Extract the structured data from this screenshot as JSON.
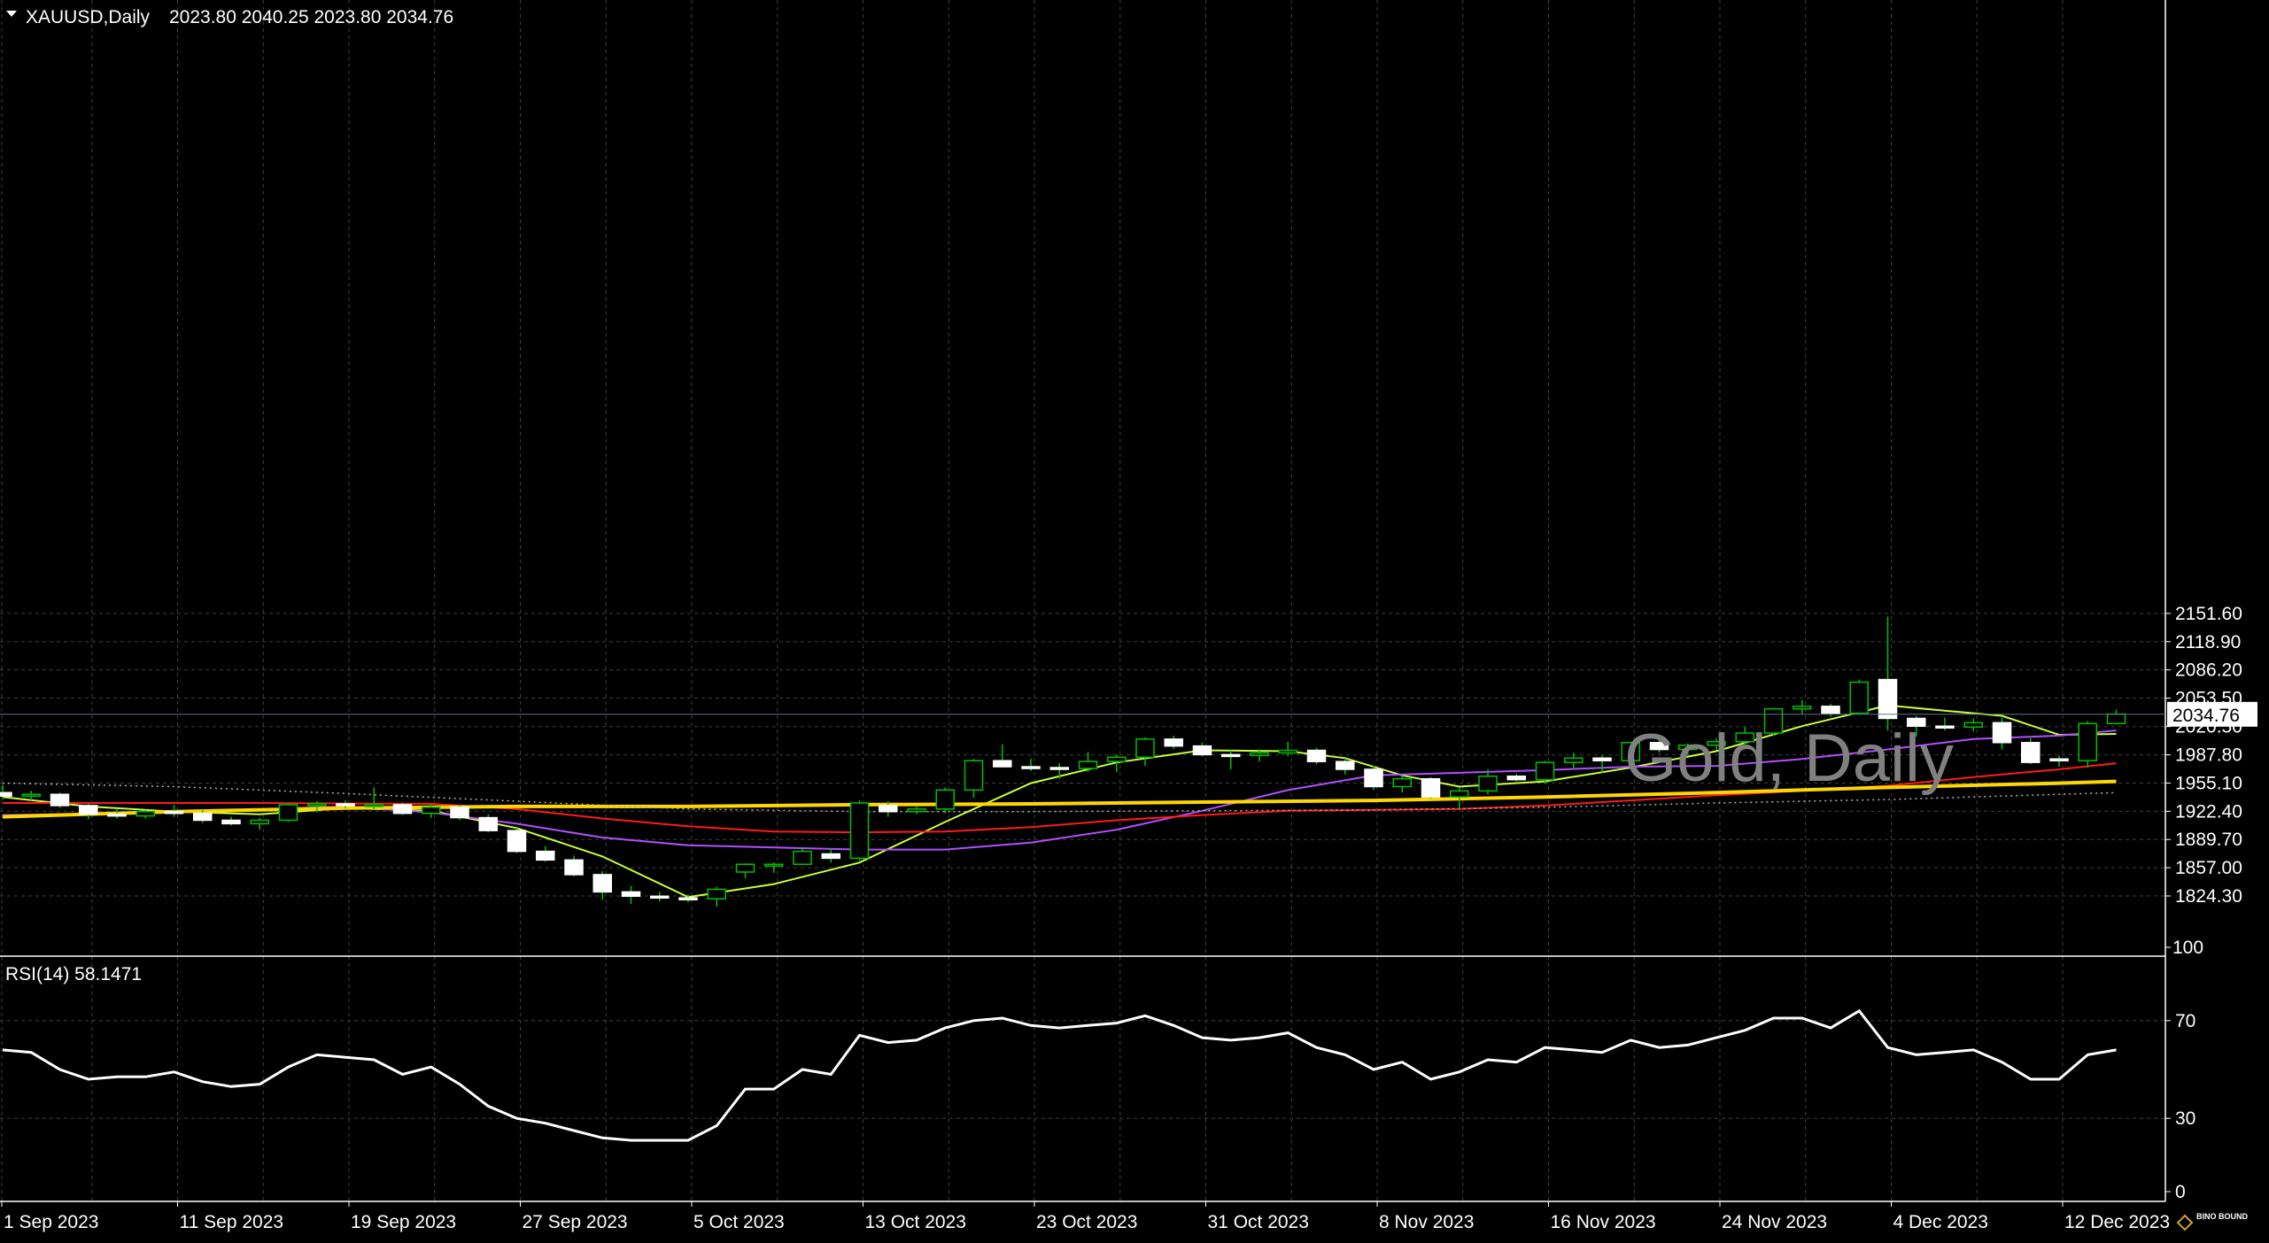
{
  "header": {
    "symbol": "XAUUSD,Daily",
    "ohlc": "2023.80 2040.25 2023.80 2034.76"
  },
  "watermark": "Gold, Daily",
  "branding": "BINO BOUND",
  "colors": {
    "background": "#000000",
    "grid": "#404040",
    "candle_up_outline": "#00c000",
    "candle_down_fill": "#ffffff",
    "ma_fast": "#c8ff3c",
    "ma_mid": "#b050ff",
    "ma_slow": "#ff1a1a",
    "ma_long": "#ffd700",
    "ma_dotted": "#b0b0b0",
    "rsi_line": "#ffffff",
    "price_line": "#607090"
  },
  "chart_data": [
    {
      "type": "candlestick",
      "title": "XAUUSD,Daily",
      "ylim": [
        1805,
        2165
      ],
      "y_ticks": [
        "2151.60",
        "2118.90",
        "2086.20",
        "2053.50",
        "2020.50",
        "1987.80",
        "1955.10",
        "1922.40",
        "1889.70",
        "1857.00",
        "1824.30"
      ],
      "current_price_label": "2034.76",
      "current_price": 2034.76,
      "x_labels": [
        "1 Sep 2023",
        "11 Sep 2023",
        "19 Sep 2023",
        "27 Sep 2023",
        "5 Oct 2023",
        "13 Oct 2023",
        "23 Oct 2023",
        "31 Oct 2023",
        "8 Nov 2023",
        "16 Nov 2023",
        "24 Nov 2023",
        "4 Dec 2023",
        "12 Dec 2023"
      ],
      "x_label_index": [
        0,
        6,
        12,
        18,
        24,
        30,
        36,
        42,
        48,
        54,
        60,
        66,
        72
      ],
      "candles": [
        {
          "o": 1944,
          "h": 1953,
          "l": 1936,
          "c": 1940
        },
        {
          "o": 1940,
          "h": 1946,
          "l": 1935,
          "c": 1942
        },
        {
          "o": 1942,
          "h": 1944,
          "l": 1926,
          "c": 1929
        },
        {
          "o": 1929,
          "h": 1931,
          "l": 1913,
          "c": 1919
        },
        {
          "o": 1919,
          "h": 1925,
          "l": 1914,
          "c": 1917
        },
        {
          "o": 1917,
          "h": 1924,
          "l": 1914,
          "c": 1922
        },
        {
          "o": 1922,
          "h": 1930,
          "l": 1916,
          "c": 1920
        },
        {
          "o": 1920,
          "h": 1924,
          "l": 1909,
          "c": 1912
        },
        {
          "o": 1912,
          "h": 1916,
          "l": 1906,
          "c": 1908
        },
        {
          "o": 1908,
          "h": 1915,
          "l": 1901,
          "c": 1912
        },
        {
          "o": 1912,
          "h": 1932,
          "l": 1910,
          "c": 1930
        },
        {
          "o": 1930,
          "h": 1934,
          "l": 1921,
          "c": 1931
        },
        {
          "o": 1931,
          "h": 1935,
          "l": 1926,
          "c": 1929
        },
        {
          "o": 1929,
          "h": 1950,
          "l": 1925,
          "c": 1930
        },
        {
          "o": 1930,
          "h": 1933,
          "l": 1918,
          "c": 1920
        },
        {
          "o": 1920,
          "h": 1930,
          "l": 1915,
          "c": 1927
        },
        {
          "o": 1927,
          "h": 1930,
          "l": 1912,
          "c": 1915
        },
        {
          "o": 1915,
          "h": 1919,
          "l": 1898,
          "c": 1900
        },
        {
          "o": 1900,
          "h": 1903,
          "l": 1874,
          "c": 1876
        },
        {
          "o": 1876,
          "h": 1882,
          "l": 1864,
          "c": 1866
        },
        {
          "o": 1866,
          "h": 1871,
          "l": 1847,
          "c": 1849
        },
        {
          "o": 1849,
          "h": 1853,
          "l": 1820,
          "c": 1829
        },
        {
          "o": 1829,
          "h": 1836,
          "l": 1815,
          "c": 1824
        },
        {
          "o": 1824,
          "h": 1829,
          "l": 1818,
          "c": 1822
        },
        {
          "o": 1822,
          "h": 1826,
          "l": 1817,
          "c": 1821
        },
        {
          "o": 1821,
          "h": 1835,
          "l": 1812,
          "c": 1832
        },
        {
          "o": 1852,
          "h": 1862,
          "l": 1845,
          "c": 1861
        },
        {
          "o": 1861,
          "h": 1863,
          "l": 1851,
          "c": 1861
        },
        {
          "o": 1861,
          "h": 1879,
          "l": 1860,
          "c": 1876
        },
        {
          "o": 1873,
          "h": 1879,
          "l": 1863,
          "c": 1868
        },
        {
          "o": 1868,
          "h": 1935,
          "l": 1865,
          "c": 1932
        },
        {
          "o": 1929,
          "h": 1934,
          "l": 1916,
          "c": 1922
        },
        {
          "o": 1922,
          "h": 1929,
          "l": 1919,
          "c": 1925
        },
        {
          "o": 1925,
          "h": 1950,
          "l": 1920,
          "c": 1947
        },
        {
          "o": 1947,
          "h": 1983,
          "l": 1938,
          "c": 1981
        },
        {
          "o": 1981,
          "h": 2000,
          "l": 1974,
          "c": 1974
        },
        {
          "o": 1974,
          "h": 1983,
          "l": 1969,
          "c": 1973
        },
        {
          "o": 1973,
          "h": 1978,
          "l": 1960,
          "c": 1972
        },
        {
          "o": 1972,
          "h": 1991,
          "l": 1968,
          "c": 1980
        },
        {
          "o": 1980,
          "h": 1988,
          "l": 1968,
          "c": 1985
        },
        {
          "o": 1985,
          "h": 2008,
          "l": 1975,
          "c": 2006
        },
        {
          "o": 2006,
          "h": 2010,
          "l": 1995,
          "c": 1998
        },
        {
          "o": 1998,
          "h": 2002,
          "l": 1986,
          "c": 1988
        },
        {
          "o": 1988,
          "h": 1993,
          "l": 1971,
          "c": 1987
        },
        {
          "o": 1987,
          "h": 1994,
          "l": 1980,
          "c": 1990
        },
        {
          "o": 1990,
          "h": 2003,
          "l": 1986,
          "c": 1993
        },
        {
          "o": 1993,
          "h": 1996,
          "l": 1977,
          "c": 1980
        },
        {
          "o": 1980,
          "h": 1984,
          "l": 1965,
          "c": 1971
        },
        {
          "o": 1971,
          "h": 1975,
          "l": 1947,
          "c": 1951
        },
        {
          "o": 1951,
          "h": 1964,
          "l": 1944,
          "c": 1960
        },
        {
          "o": 1960,
          "h": 1962,
          "l": 1937,
          "c": 1939
        },
        {
          "o": 1939,
          "h": 1950,
          "l": 1925,
          "c": 1946
        },
        {
          "o": 1946,
          "h": 1971,
          "l": 1942,
          "c": 1963
        },
        {
          "o": 1963,
          "h": 1966,
          "l": 1957,
          "c": 1959
        },
        {
          "o": 1959,
          "h": 1981,
          "l": 1954,
          "c": 1979
        },
        {
          "o": 1979,
          "h": 1990,
          "l": 1971,
          "c": 1984
        },
        {
          "o": 1984,
          "h": 1987,
          "l": 1967,
          "c": 1981
        },
        {
          "o": 1981,
          "h": 2003,
          "l": 1978,
          "c": 2002
        },
        {
          "o": 2002,
          "h": 2009,
          "l": 1990,
          "c": 1994
        },
        {
          "o": 1994,
          "h": 2001,
          "l": 1988,
          "c": 1999
        },
        {
          "o": 1999,
          "h": 2007,
          "l": 1993,
          "c": 2003
        },
        {
          "o": 2003,
          "h": 2020,
          "l": 2000,
          "c": 2013
        },
        {
          "o": 2013,
          "h": 2042,
          "l": 2010,
          "c": 2041
        },
        {
          "o": 2041,
          "h": 2051,
          "l": 2035,
          "c": 2044
        },
        {
          "o": 2044,
          "h": 2047,
          "l": 2032,
          "c": 2036
        },
        {
          "o": 2036,
          "h": 2075,
          "l": 2034,
          "c": 2072
        },
        {
          "o": 2075,
          "h": 2148,
          "l": 2016,
          "c": 2030
        },
        {
          "o": 2030,
          "h": 2033,
          "l": 2009,
          "c": 2021
        },
        {
          "o": 2021,
          "h": 2031,
          "l": 2016,
          "c": 2020
        },
        {
          "o": 2020,
          "h": 2030,
          "l": 2015,
          "c": 2025
        },
        {
          "o": 2025,
          "h": 2031,
          "l": 1994,
          "c": 2002
        },
        {
          "o": 2002,
          "h": 2007,
          "l": 1977,
          "c": 1979
        },
        {
          "o": 1983,
          "h": 1987,
          "l": 1974,
          "c": 1981
        },
        {
          "o": 1981,
          "h": 2027,
          "l": 1973,
          "c": 2024
        },
        {
          "o": 2024,
          "h": 2040,
          "l": 2024,
          "c": 2035
        }
      ],
      "moving_averages": [
        {
          "color": "#c8ff3c",
          "points": [
            [
              0,
              1939
            ],
            [
              3,
              1928
            ],
            [
              6,
              1922
            ],
            [
              9,
              1919
            ],
            [
              12,
              1926
            ],
            [
              15,
              1923
            ],
            [
              18,
              1903
            ],
            [
              21,
              1870
            ],
            [
              24,
              1823
            ],
            [
              27,
              1838
            ],
            [
              30,
              1863
            ],
            [
              33,
              1910
            ],
            [
              36,
              1955
            ],
            [
              39,
              1979
            ],
            [
              42,
              1993
            ],
            [
              45,
              1992
            ],
            [
              47,
              1984
            ],
            [
              49,
              1964
            ],
            [
              51,
              1951
            ],
            [
              54,
              1957
            ],
            [
              57,
              1973
            ],
            [
              60,
              1992
            ],
            [
              63,
              2021
            ],
            [
              66,
              2045
            ],
            [
              68,
              2039
            ],
            [
              70,
              2033
            ],
            [
              72,
              2011
            ],
            [
              74,
              2012
            ]
          ]
        },
        {
          "color": "#b050ff",
          "points": [
            [
              0,
              1918
            ],
            [
              6,
              1921
            ],
            [
              12,
              1928
            ],
            [
              15,
              1921
            ],
            [
              18,
              1908
            ],
            [
              21,
              1892
            ],
            [
              24,
              1883
            ],
            [
              30,
              1878
            ],
            [
              33,
              1878
            ],
            [
              36,
              1886
            ],
            [
              39,
              1901
            ],
            [
              42,
              1923
            ],
            [
              45,
              1947
            ],
            [
              48,
              1964
            ],
            [
              51,
              1967
            ],
            [
              54,
              1970
            ],
            [
              57,
              1974
            ],
            [
              60,
              1975
            ],
            [
              63,
              1983
            ],
            [
              66,
              1994
            ],
            [
              69,
              2006
            ],
            [
              72,
              2010
            ],
            [
              74,
              2016
            ]
          ]
        },
        {
          "color": "#ff1a1a",
          "points": [
            [
              0,
              1932
            ],
            [
              9,
              1932
            ],
            [
              15,
              1931
            ],
            [
              18,
              1925
            ],
            [
              21,
              1914
            ],
            [
              24,
              1905
            ],
            [
              27,
              1899
            ],
            [
              30,
              1898
            ],
            [
              33,
              1899
            ],
            [
              36,
              1904
            ],
            [
              39,
              1912
            ],
            [
              42,
              1918
            ],
            [
              45,
              1923
            ],
            [
              48,
              1924
            ],
            [
              51,
              1925
            ],
            [
              54,
              1929
            ],
            [
              57,
              1935
            ],
            [
              60,
              1941
            ],
            [
              63,
              1946
            ],
            [
              66,
              1952
            ],
            [
              69,
              1962
            ],
            [
              72,
              1971
            ],
            [
              74,
              1978
            ]
          ]
        },
        {
          "color": "#ffd700",
          "points": [
            [
              0,
              1916
            ],
            [
              6,
              1922
            ],
            [
              12,
              1926
            ],
            [
              18,
              1928
            ],
            [
              24,
              1928
            ],
            [
              30,
              1930
            ],
            [
              36,
              1931
            ],
            [
              42,
              1933
            ],
            [
              48,
              1935
            ],
            [
              54,
              1939
            ],
            [
              60,
              1944
            ],
            [
              66,
              1950
            ],
            [
              72,
              1955
            ],
            [
              74,
              1957
            ]
          ]
        },
        {
          "color": "#b0b0b0",
          "dotted": true,
          "points": [
            [
              0,
              1955
            ],
            [
              6,
              1951
            ],
            [
              12,
              1943
            ],
            [
              18,
              1934
            ],
            [
              24,
              1925
            ],
            [
              30,
              1922
            ],
            [
              36,
              1922
            ],
            [
              42,
              1923
            ],
            [
              48,
              1924
            ],
            [
              54,
              1927
            ],
            [
              60,
              1932
            ],
            [
              66,
              1936
            ],
            [
              72,
              1942
            ],
            [
              74,
              1944
            ]
          ]
        }
      ]
    },
    {
      "type": "line",
      "title": "RSI(14) 58.1471",
      "ylim": [
        0,
        100
      ],
      "y_ticks": [
        "100",
        "70",
        "30",
        "0"
      ],
      "levels": [
        70,
        30
      ],
      "values": [
        58,
        57,
        50,
        46,
        47,
        47,
        49,
        45,
        43,
        44,
        51,
        56,
        55,
        54,
        48,
        51,
        44,
        35,
        30,
        28,
        25,
        22,
        21,
        21,
        21,
        27,
        42,
        42,
        50,
        48,
        64,
        61,
        62,
        67,
        70,
        71,
        68,
        67,
        68,
        69,
        72,
        68,
        63,
        62,
        63,
        65,
        59,
        56,
        50,
        53,
        46,
        49,
        54,
        53,
        59,
        58,
        57,
        62,
        59,
        60,
        63,
        66,
        71,
        71,
        67,
        74,
        59,
        56,
        57,
        58,
        53,
        46,
        46,
        56,
        58
      ]
    }
  ]
}
